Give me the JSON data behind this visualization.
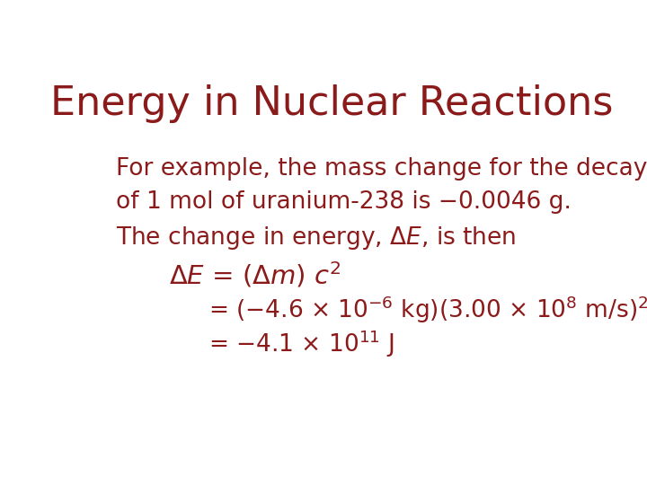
{
  "title": "Energy in Nuclear Reactions",
  "title_color": "#8B1A1A",
  "title_fontsize": 32,
  "body_color": "#8B1A1A",
  "background_color": "#FFFFFF",
  "fs_body": 19,
  "fs_eq": 21
}
